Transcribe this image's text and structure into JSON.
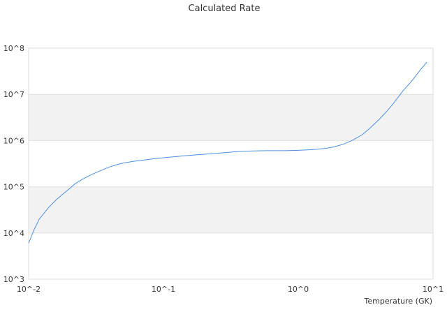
{
  "chart_data": {
    "type": "line",
    "title": "Calculated Rate",
    "xlabel": "Temperature (GK)",
    "ylabel": "",
    "xscale": "log",
    "yscale": "log",
    "xlim": [
      0.01,
      10
    ],
    "ylim": [
      1000,
      100000000
    ],
    "x_ticks": [
      "10^-2",
      "10^-1",
      "10^0",
      "10^1"
    ],
    "y_ticks": [
      "10^3",
      "10^4",
      "10^5",
      "10^6",
      "10^7",
      "10^8"
    ],
    "alternating_bands": true,
    "band_color": "#f2f2f2",
    "line_color": "#4a90e2",
    "series": [
      {
        "x": [
          0.01,
          0.011,
          0.012,
          0.014,
          0.016,
          0.018,
          0.02,
          0.022,
          0.025,
          0.03,
          0.035,
          0.04,
          0.045,
          0.05,
          0.06,
          0.07,
          0.08,
          0.09,
          0.1,
          0.12,
          0.14,
          0.16,
          0.18,
          0.2,
          0.25,
          0.3,
          0.35,
          0.4,
          0.5,
          0.6,
          0.7,
          0.8,
          0.9,
          1.0,
          1.2,
          1.4,
          1.6,
          1.8,
          2.0,
          2.2,
          2.5,
          3.0,
          3.5,
          4.0,
          4.5,
          5.0,
          6.0,
          7.0,
          8.0,
          9.0
        ],
        "y": [
          6000,
          12000,
          20000,
          35000,
          52000,
          70000,
          90000,
          115000,
          145000,
          190000,
          230000,
          270000,
          300000,
          325000,
          355000,
          375000,
          395000,
          410000,
          425000,
          445000,
          465000,
          480000,
          495000,
          505000,
          530000,
          555000,
          575000,
          590000,
          600000,
          605000,
          605000,
          605000,
          610000,
          615000,
          630000,
          650000,
          680000,
          720000,
          780000,
          850000,
          1000000,
          1350000,
          2000000,
          2900000,
          4200000,
          6000000,
          12000000,
          20000000,
          33000000,
          50000000
        ]
      }
    ]
  }
}
